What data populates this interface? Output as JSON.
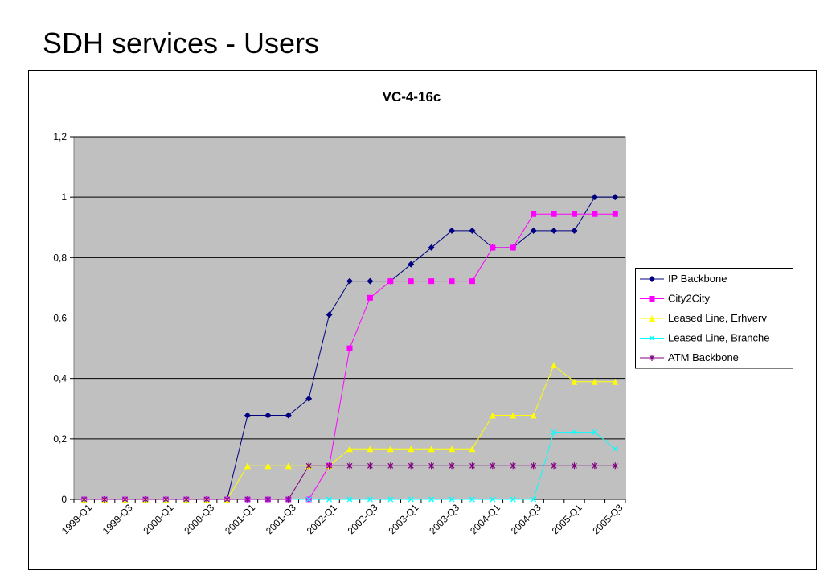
{
  "page_title": "SDH services - Users",
  "chart_data": {
    "type": "line",
    "title": "VC-4-16c",
    "categories": [
      "1999-Q1",
      null,
      "1999-Q3",
      null,
      "2000-Q1",
      null,
      "2000-Q3",
      null,
      "2001-Q1",
      null,
      "2001-Q3",
      null,
      "2002-Q1",
      null,
      "2002-Q3",
      null,
      "2003-Q1",
      null,
      "2003-Q3",
      null,
      "2004-Q1",
      null,
      "2004-Q3",
      null,
      "2005-Q1",
      null,
      "2005-Q3"
    ],
    "series": [
      {
        "name": "IP Backbone",
        "color": "#000080",
        "marker": "diamond",
        "values": [
          0,
          0,
          0,
          0,
          0,
          0,
          0,
          0,
          0.278,
          0.278,
          0.278,
          0.333,
          0.611,
          0.722,
          0.722,
          0.722,
          0.778,
          0.833,
          0.889,
          0.889,
          0.833,
          0.833,
          0.889,
          0.889,
          0.889,
          1,
          1
        ]
      },
      {
        "name": "City2City",
        "color": "#ff00ff",
        "marker": "square",
        "values": [
          0,
          0,
          0,
          0,
          0,
          0,
          0,
          0,
          0,
          0,
          0,
          0,
          0.111,
          0.5,
          0.667,
          0.722,
          0.722,
          0.722,
          0.722,
          0.722,
          0.833,
          0.833,
          0.944,
          0.944,
          0.944,
          0.944,
          0.944
        ]
      },
      {
        "name": "Leased Line, Erhverv",
        "color": "#ffff00",
        "marker": "triangle",
        "values": [
          0,
          0,
          0,
          0,
          0,
          0,
          0,
          0,
          0.111,
          0.111,
          0.111,
          0.111,
          0.111,
          0.167,
          0.167,
          0.167,
          0.167,
          0.167,
          0.167,
          0.167,
          0.278,
          0.278,
          0.278,
          0.444,
          0.389,
          0.389,
          0.389
        ]
      },
      {
        "name": "Leased Line, Branche",
        "color": "#00ffff",
        "marker": "x",
        "values": [
          0,
          0,
          0,
          0,
          0,
          0,
          0,
          0,
          0,
          0,
          0,
          0,
          0,
          0,
          0,
          0,
          0,
          0,
          0,
          0,
          0,
          0,
          0,
          0.222,
          0.222,
          0.222,
          0.167
        ]
      },
      {
        "name": "ATM Backbone",
        "color": "#800080",
        "marker": "star",
        "values": [
          0,
          0,
          0,
          0,
          0,
          0,
          0,
          0,
          0,
          0,
          0,
          0.111,
          0.111,
          0.111,
          0.111,
          0.111,
          0.111,
          0.111,
          0.111,
          0.111,
          0.111,
          0.111,
          0.111,
          0.111,
          0.111,
          0.111,
          0.111
        ]
      }
    ],
    "ylim": [
      0,
      1.2
    ],
    "yticks": [
      0,
      {
        "value": 0.2,
        "label": "0,2"
      },
      {
        "value": 0.4,
        "label": "0,4"
      },
      {
        "value": 0.6,
        "label": "0,6"
      },
      {
        "value": 0.8,
        "label": "0,8"
      },
      1,
      {
        "value": 1.2,
        "label": "1,2"
      }
    ],
    "grid": true,
    "legend": "right",
    "plot_background": "#c0c0c0"
  }
}
